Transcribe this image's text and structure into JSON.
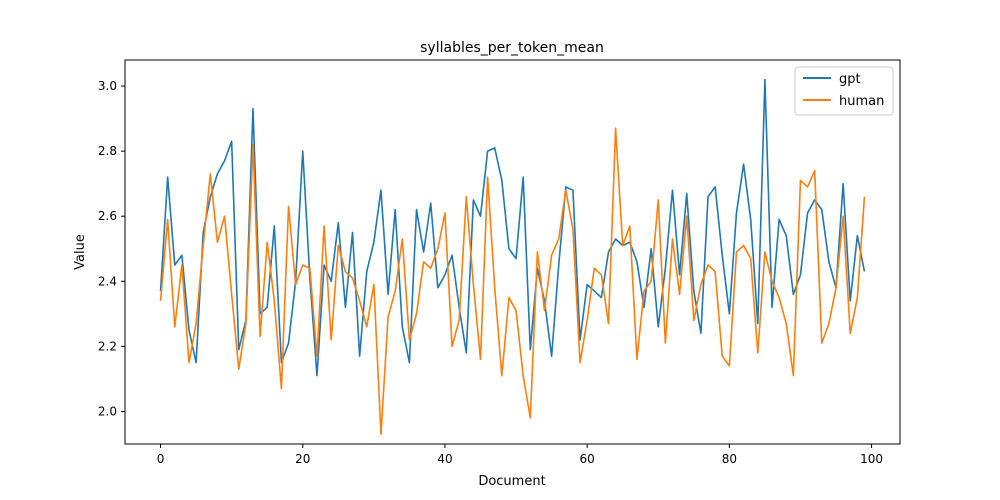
{
  "chart_data": {
    "type": "line",
    "title": "syllables_per_token_mean",
    "xlabel": "Document",
    "ylabel": "Value",
    "xlim": [
      -5,
      104
    ],
    "ylim": [
      1.9,
      3.08
    ],
    "xticks": [
      0,
      20,
      40,
      60,
      80,
      100
    ],
    "yticks": [
      2.0,
      2.2,
      2.4,
      2.6,
      2.8,
      3.0
    ],
    "xtick_labels": [
      "0",
      "20",
      "40",
      "60",
      "80",
      "100"
    ],
    "ytick_labels": [
      "2.0",
      "2.2",
      "2.4",
      "2.6",
      "2.8",
      "3.0"
    ],
    "grid": false,
    "legend_position": "top-right",
    "x": [
      0,
      1,
      2,
      3,
      4,
      5,
      6,
      7,
      8,
      9,
      10,
      11,
      12,
      13,
      14,
      15,
      16,
      17,
      18,
      19,
      20,
      21,
      22,
      23,
      24,
      25,
      26,
      27,
      28,
      29,
      30,
      31,
      32,
      33,
      34,
      35,
      36,
      37,
      38,
      39,
      40,
      41,
      42,
      43,
      44,
      45,
      46,
      47,
      48,
      49,
      50,
      51,
      52,
      53,
      54,
      55,
      56,
      57,
      58,
      59,
      60,
      61,
      62,
      63,
      64,
      65,
      66,
      67,
      68,
      69,
      70,
      71,
      72,
      73,
      74,
      75,
      76,
      77,
      78,
      79,
      80,
      81,
      82,
      83,
      84,
      85,
      86,
      87,
      88,
      89,
      90,
      91,
      92,
      93,
      94,
      95,
      96,
      97,
      98,
      99
    ],
    "series": [
      {
        "name": "gpt",
        "color": "#1f77b4",
        "values": [
          2.37,
          2.72,
          2.45,
          2.48,
          2.25,
          2.15,
          2.55,
          2.66,
          2.73,
          2.77,
          2.83,
          2.19,
          2.28,
          2.93,
          2.3,
          2.32,
          2.57,
          2.15,
          2.21,
          2.4,
          2.8,
          2.41,
          2.11,
          2.45,
          2.4,
          2.58,
          2.32,
          2.55,
          2.17,
          2.43,
          2.52,
          2.68,
          2.36,
          2.62,
          2.26,
          2.15,
          2.62,
          2.49,
          2.64,
          2.38,
          2.42,
          2.48,
          2.32,
          2.18,
          2.65,
          2.6,
          2.8,
          2.81,
          2.71,
          2.5,
          2.47,
          2.72,
          2.19,
          2.44,
          2.34,
          2.17,
          2.45,
          2.69,
          2.68,
          2.22,
          2.39,
          2.37,
          2.35,
          2.49,
          2.53,
          2.51,
          2.52,
          2.46,
          2.32,
          2.5,
          2.26,
          2.44,
          2.68,
          2.42,
          2.67,
          2.37,
          2.24,
          2.66,
          2.69,
          2.48,
          2.3,
          2.61,
          2.76,
          2.59,
          2.27,
          3.02,
          2.32,
          2.59,
          2.54,
          2.36,
          2.42,
          2.61,
          2.65,
          2.62,
          2.46,
          2.38,
          2.7,
          2.34,
          2.54,
          2.43
        ]
      },
      {
        "name": "human",
        "color": "#ff7f0e",
        "values": [
          2.34,
          2.59,
          2.26,
          2.45,
          2.15,
          2.27,
          2.51,
          2.73,
          2.52,
          2.6,
          2.36,
          2.13,
          2.27,
          2.82,
          2.23,
          2.52,
          2.34,
          2.07,
          2.63,
          2.39,
          2.45,
          2.44,
          2.17,
          2.57,
          2.22,
          2.51,
          2.43,
          2.41,
          2.34,
          2.26,
          2.39,
          1.93,
          2.29,
          2.37,
          2.53,
          2.22,
          2.3,
          2.46,
          2.44,
          2.5,
          2.61,
          2.2,
          2.28,
          2.66,
          2.39,
          2.16,
          2.72,
          2.38,
          2.11,
          2.35,
          2.31,
          2.11,
          1.98,
          2.49,
          2.31,
          2.48,
          2.53,
          2.68,
          2.56,
          2.15,
          2.28,
          2.44,
          2.42,
          2.27,
          2.87,
          2.51,
          2.57,
          2.16,
          2.37,
          2.4,
          2.65,
          2.21,
          2.53,
          2.36,
          2.6,
          2.28,
          2.39,
          2.45,
          2.43,
          2.17,
          2.14,
          2.49,
          2.51,
          2.47,
          2.18,
          2.49,
          2.4,
          2.35,
          2.27,
          2.11,
          2.71,
          2.69,
          2.74,
          2.21,
          2.27,
          2.38,
          2.6,
          2.24,
          2.35,
          2.66
        ]
      }
    ]
  }
}
